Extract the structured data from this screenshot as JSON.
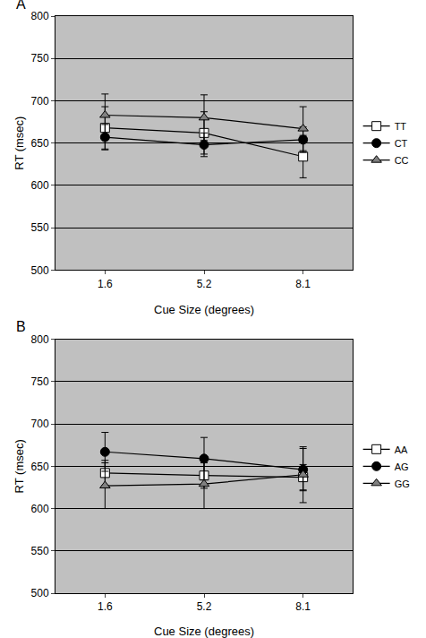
{
  "chart_data": [
    {
      "type": "line",
      "title": "A",
      "x_label": "Cue Size (degrees)",
      "y_label": "RT (msec)",
      "categories": [
        "1.6",
        "5.2",
        "8.1"
      ],
      "ylim": [
        500,
        800
      ],
      "yticks": [
        500,
        550,
        600,
        650,
        700,
        750,
        800
      ],
      "grid": true,
      "legend": "right",
      "series": [
        {
          "name": "TT",
          "color": "#ffffff",
          "marker": "square",
          "line_style": "solid",
          "values": [
            668,
            662,
            634
          ],
          "errors": [
            25,
            25,
            25
          ]
        },
        {
          "name": "CT",
          "color": "#000000",
          "marker": "circle",
          "line_style": "solid",
          "values": [
            657,
            648,
            654
          ],
          "errors": [
            15,
            14,
            15
          ]
        },
        {
          "name": "CC",
          "color": "#808080",
          "marker": "triangle-up",
          "line_style": "solid",
          "values": [
            683,
            680,
            667
          ],
          "errors": [
            25,
            27,
            26
          ]
        }
      ]
    },
    {
      "type": "line",
      "title": "B",
      "x_label": "Cue Size (degrees)",
      "y_label": "RT (msec)",
      "categories": [
        "1.6",
        "5.2",
        "8.1"
      ],
      "ylim": [
        500,
        800
      ],
      "yticks": [
        500,
        550,
        600,
        650,
        700,
        750,
        800
      ],
      "grid": true,
      "legend": "right",
      "series": [
        {
          "name": "AA",
          "color": "#ffffff",
          "marker": "square",
          "line_style": "solid",
          "values": [
            642,
            639,
            637
          ],
          "errors": [
            15,
            15,
            15
          ]
        },
        {
          "name": "AG",
          "color": "#000000",
          "marker": "circle",
          "line_style": "solid",
          "values": [
            667,
            659,
            646
          ],
          "errors": [
            23,
            25,
            25
          ]
        },
        {
          "name": "GG",
          "color": "#808080",
          "marker": "triangle-up",
          "line_style": "solid",
          "values": [
            627,
            629,
            640
          ],
          "errors": [
            27,
            29,
            33
          ]
        }
      ]
    }
  ]
}
